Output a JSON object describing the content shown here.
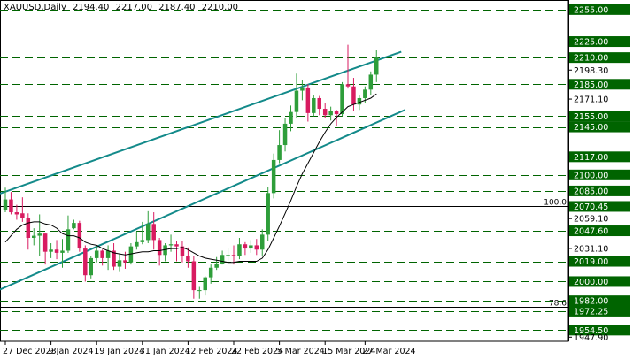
{
  "header": {
    "symbol": "XAUUSD,Daily",
    "open": "2194.40",
    "high": "2217.00",
    "low": "2187.40",
    "close": "2210.00"
  },
  "colors": {
    "background": "#ffffff",
    "grid": "#000000",
    "bull_candle": "#2e9e3a",
    "bear_candle": "#d81b60",
    "ma_line": "#000000",
    "channel": "#138a8a",
    "level_line": "#006400",
    "label_box": "#006400",
    "label_text": "#ffffff",
    "fib_line": "#000000"
  },
  "chart_data": {
    "type": "candlestick",
    "symbol": "XAUUSD",
    "timeframe": "Daily",
    "ohlc_header": {
      "open": 2194.4,
      "high": 2217.0,
      "low": 2187.4,
      "close": 2210.0
    },
    "y_range": [
      1944,
      2264
    ],
    "price_axis_labels": [
      "2255.00",
      "2225.00",
      "2210.00",
      "2198.30",
      "2185.00",
      "2171.10",
      "2155.00",
      "2145.00",
      "2117.00",
      "2100.00",
      "2085.00",
      "2070.45",
      "2059.10",
      "2047.60",
      "2031.10",
      "2019.00",
      "2000.00",
      "1982.00",
      "1972.25",
      "1954.50",
      "1947.90"
    ],
    "level_lines": [
      {
        "price": 2255.0,
        "label": "2255.00",
        "style": "dashed"
      },
      {
        "price": 2225.0,
        "label": "2225.00",
        "style": "dashed"
      },
      {
        "price": 2210.0,
        "label": "2210.00",
        "style": "dashed"
      },
      {
        "price": 2185.0,
        "label": "2185.00",
        "style": "dashed"
      },
      {
        "price": 2155.0,
        "label": "2155.00",
        "style": "dashed"
      },
      {
        "price": 2145.0,
        "label": "2145.00",
        "style": "dashed"
      },
      {
        "price": 2117.0,
        "label": "2117.00",
        "style": "dashed"
      },
      {
        "price": 2100.0,
        "label": "2100.00",
        "style": "dashed"
      },
      {
        "price": 2085.0,
        "label": "2085.00",
        "style": "dashed"
      },
      {
        "price": 2047.6,
        "label": "2047.60",
        "style": "dashed"
      },
      {
        "price": 2019.0,
        "label": "2019.00",
        "style": "dashed"
      },
      {
        "price": 2000.0,
        "label": "2000.00",
        "style": "dashed"
      },
      {
        "price": 1982.0,
        "label": "1982.00",
        "style": "dashed"
      },
      {
        "price": 1972.25,
        "label": "1972.25",
        "style": "dashed"
      },
      {
        "price": 1954.5,
        "label": "1954.50",
        "style": "dashed"
      }
    ],
    "fib_lines": [
      {
        "price": 2070.45,
        "label": "2070.45",
        "tag": "100.0"
      },
      {
        "price": 1976.5,
        "label": "",
        "tag": "78.6"
      }
    ],
    "channel_lines": [
      {
        "name": "upper",
        "points": [
          [
            "2023-12-27",
            2085.0
          ],
          [
            "2024-03-28",
            2213.0
          ]
        ]
      },
      {
        "name": "lower",
        "points": [
          [
            "2023-12-27",
            1995.0
          ],
          [
            "2024-04-04",
            2161.0
          ]
        ]
      }
    ],
    "date_labels": [
      "27 Dec 2023",
      "9 Jan 2024",
      "19 Jan 2024",
      "31 Jan 2024",
      "12 Feb 2024",
      "22 Feb 2024",
      "5 Mar 2024",
      "15 Mar 2024",
      "27 Mar 2024"
    ],
    "candles": [
      [
        "2023-12-27",
        2067,
        2088,
        2065,
        2077
      ],
      [
        "2023-12-28",
        2077,
        2084,
        2063,
        2065
      ],
      [
        "2023-12-29",
        2065,
        2072,
        2058,
        2063
      ],
      [
        "2024-01-02",
        2064,
        2079,
        2056,
        2060
      ],
      [
        "2024-01-03",
        2060,
        2064,
        2030,
        2041
      ],
      [
        "2024-01-04",
        2041,
        2050,
        2034,
        2043
      ],
      [
        "2024-01-05",
        2043,
        2063,
        2024,
        2045
      ],
      [
        "2024-01-08",
        2045,
        2046,
        2016,
        2028
      ],
      [
        "2024-01-09",
        2028,
        2036,
        2022,
        2030
      ],
      [
        "2024-01-10",
        2030,
        2039,
        2021,
        2027
      ],
      [
        "2024-01-11",
        2027,
        2040,
        2013,
        2029
      ],
      [
        "2024-01-12",
        2029,
        2062,
        2027,
        2049
      ],
      [
        "2024-01-15",
        2050,
        2058,
        2049,
        2055
      ],
      [
        "2024-01-16",
        2055,
        2057,
        2028,
        2031
      ],
      [
        "2024-01-17",
        2031,
        2034,
        2000,
        2006
      ],
      [
        "2024-01-18",
        2006,
        2024,
        2003,
        2022
      ],
      [
        "2024-01-19",
        2022,
        2033,
        2018,
        2029
      ],
      [
        "2024-01-22",
        2029,
        2030,
        2015,
        2022
      ],
      [
        "2024-01-23",
        2022,
        2034,
        2011,
        2029
      ],
      [
        "2024-01-24",
        2029,
        2036,
        2011,
        2014
      ],
      [
        "2024-01-25",
        2014,
        2026,
        2009,
        2020
      ],
      [
        "2024-01-26",
        2020,
        2028,
        2012,
        2018
      ],
      [
        "2024-01-29",
        2018,
        2036,
        2016,
        2033
      ],
      [
        "2024-01-30",
        2033,
        2047,
        2030,
        2037
      ],
      [
        "2024-01-31",
        2037,
        2056,
        2035,
        2039
      ],
      [
        "2024-02-01",
        2039,
        2066,
        2036,
        2054
      ],
      [
        "2024-02-02",
        2054,
        2065,
        2030,
        2039
      ],
      [
        "2024-02-05",
        2039,
        2041,
        2015,
        2025
      ],
      [
        "2024-02-06",
        2025,
        2036,
        2019,
        2034
      ],
      [
        "2024-02-07",
        2034,
        2044,
        2028,
        2035
      ],
      [
        "2024-02-08",
        2035,
        2038,
        2019,
        2033
      ],
      [
        "2024-02-09",
        2033,
        2038,
        2018,
        2024
      ],
      [
        "2024-02-12",
        2024,
        2032,
        2013,
        2019
      ],
      [
        "2024-02-13",
        2019,
        2024,
        1984,
        1992
      ],
      [
        "2024-02-14",
        1992,
        1995,
        1984,
        1992
      ],
      [
        "2024-02-15",
        1992,
        2005,
        1987,
        2004
      ],
      [
        "2024-02-16",
        2004,
        2016,
        1998,
        2013
      ],
      [
        "2024-02-19",
        2013,
        2023,
        2011,
        2017
      ],
      [
        "2024-02-20",
        2017,
        2029,
        2016,
        2025
      ],
      [
        "2024-02-21",
        2025,
        2032,
        2019,
        2025
      ],
      [
        "2024-02-22",
        2025,
        2034,
        2016,
        2024
      ],
      [
        "2024-02-23",
        2024,
        2041,
        2021,
        2035
      ],
      [
        "2024-02-26",
        2035,
        2037,
        2025,
        2031
      ],
      [
        "2024-02-27",
        2031,
        2039,
        2027,
        2034
      ],
      [
        "2024-02-28",
        2034,
        2040,
        2025,
        2030
      ],
      [
        "2024-02-29",
        2030,
        2049,
        2024,
        2044
      ],
      [
        "2024-03-01",
        2044,
        2089,
        2038,
        2083
      ],
      [
        "2024-03-04",
        2083,
        2120,
        2078,
        2114
      ],
      [
        "2024-03-05",
        2114,
        2142,
        2111,
        2128
      ],
      [
        "2024-03-06",
        2128,
        2153,
        2122,
        2148
      ],
      [
        "2024-03-07",
        2148,
        2165,
        2141,
        2159
      ],
      [
        "2024-03-08",
        2159,
        2195,
        2153,
        2179
      ],
      [
        "2024-03-11",
        2179,
        2189,
        2170,
        2182
      ],
      [
        "2024-03-12",
        2182,
        2185,
        2150,
        2158
      ],
      [
        "2024-03-13",
        2158,
        2175,
        2155,
        2172
      ],
      [
        "2024-03-14",
        2172,
        2174,
        2156,
        2162
      ],
      [
        "2024-03-15",
        2162,
        2167,
        2153,
        2156
      ],
      [
        "2024-03-18",
        2156,
        2164,
        2151,
        2160
      ],
      [
        "2024-03-19",
        2160,
        2161,
        2146,
        2157
      ],
      [
        "2024-03-20",
        2157,
        2187,
        2155,
        2185
      ],
      [
        "2024-03-21",
        2185,
        2222,
        2181,
        2183
      ],
      [
        "2024-03-22",
        2183,
        2191,
        2160,
        2166
      ],
      [
        "2024-03-25",
        2166,
        2175,
        2161,
        2172
      ],
      [
        "2024-03-26",
        2172,
        2183,
        2167,
        2180
      ],
      [
        "2024-03-27",
        2180,
        2197,
        2175,
        2194
      ],
      [
        "2024-03-28",
        2194,
        2217,
        2187,
        2210
      ]
    ],
    "moving_average": [
      [
        "2023-12-27",
        2037
      ],
      [
        "2023-12-28",
        2043
      ],
      [
        "2023-12-29",
        2049
      ],
      [
        "2024-01-02",
        2053
      ],
      [
        "2024-01-03",
        2055
      ],
      [
        "2024-01-04",
        2056
      ],
      [
        "2024-01-05",
        2056
      ],
      [
        "2024-01-08",
        2054
      ],
      [
        "2024-01-09",
        2053
      ],
      [
        "2024-01-10",
        2050
      ],
      [
        "2024-01-11",
        2045
      ],
      [
        "2024-01-12",
        2043
      ],
      [
        "2024-01-15",
        2043
      ],
      [
        "2024-01-16",
        2041
      ],
      [
        "2024-01-17",
        2037
      ],
      [
        "2024-01-18",
        2035
      ],
      [
        "2024-01-19",
        2034
      ],
      [
        "2024-01-22",
        2031
      ],
      [
        "2024-01-23",
        2029
      ],
      [
        "2024-01-24",
        2027
      ],
      [
        "2024-01-25",
        2026
      ],
      [
        "2024-01-26",
        2025
      ],
      [
        "2024-01-29",
        2026
      ],
      [
        "2024-01-30",
        2027
      ],
      [
        "2024-01-31",
        2028
      ],
      [
        "2024-02-01",
        2028
      ],
      [
        "2024-02-02",
        2029
      ],
      [
        "2024-02-05",
        2029
      ],
      [
        "2024-02-06",
        2030
      ],
      [
        "2024-02-07",
        2031
      ],
      [
        "2024-02-08",
        2031
      ],
      [
        "2024-02-09",
        2032
      ],
      [
        "2024-02-12",
        2030
      ],
      [
        "2024-02-13",
        2027
      ],
      [
        "2024-02-14",
        2024
      ],
      [
        "2024-02-15",
        2022
      ],
      [
        "2024-02-16",
        2021
      ],
      [
        "2024-02-19",
        2020
      ],
      [
        "2024-02-20",
        2019
      ],
      [
        "2024-02-21",
        2018
      ],
      [
        "2024-02-22",
        2018
      ],
      [
        "2024-02-23",
        2019
      ],
      [
        "2024-02-26",
        2019
      ],
      [
        "2024-02-27",
        2019
      ],
      [
        "2024-02-28",
        2019
      ],
      [
        "2024-02-29",
        2022
      ],
      [
        "2024-03-01",
        2030
      ],
      [
        "2024-03-04",
        2041
      ],
      [
        "2024-03-05",
        2052
      ],
      [
        "2024-03-06",
        2064
      ],
      [
        "2024-03-07",
        2076
      ],
      [
        "2024-03-08",
        2089
      ],
      [
        "2024-03-11",
        2101
      ],
      [
        "2024-03-12",
        2111
      ],
      [
        "2024-03-13",
        2121
      ],
      [
        "2024-03-14",
        2131
      ],
      [
        "2024-03-15",
        2140
      ],
      [
        "2024-03-18",
        2148
      ],
      [
        "2024-03-19",
        2154
      ],
      [
        "2024-03-20",
        2159
      ],
      [
        "2024-03-21",
        2164
      ],
      [
        "2024-03-22",
        2166
      ],
      [
        "2024-03-25",
        2168
      ],
      [
        "2024-03-26",
        2170
      ],
      [
        "2024-03-27",
        2172
      ],
      [
        "2024-03-28",
        2176
      ]
    ]
  }
}
